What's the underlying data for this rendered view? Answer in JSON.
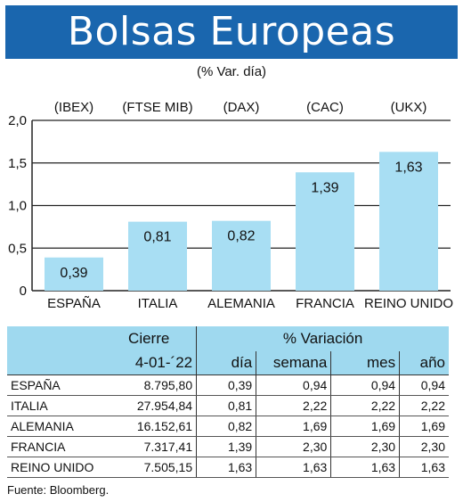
{
  "header": {
    "title": "Bolsas Europeas",
    "subtitle": "(% Var. día)"
  },
  "chart_data": {
    "type": "bar",
    "title": "Bolsas Europeas",
    "subtitle": "(% Var. día)",
    "categories": [
      "ESPAÑA",
      "ITALIA",
      "ALEMANIA",
      "FRANCIA",
      "REINO UNIDO"
    ],
    "indices": [
      "(IBEX)",
      "(FTSE MIB)",
      "(DAX)",
      "(CAC)",
      "(UKX)"
    ],
    "values": [
      0.39,
      0.81,
      0.82,
      1.39,
      1.63
    ],
    "value_labels": [
      "0,39",
      "0,81",
      "0,82",
      "1,39",
      "1,63"
    ],
    "yticks": [
      "0",
      "0,5",
      "1,0",
      "1,5",
      "2,0"
    ],
    "ytick_values": [
      0,
      0.5,
      1.0,
      1.5,
      2.0
    ],
    "ylim": [
      0,
      2.0
    ],
    "grid": true,
    "bar_color": "#a8def3"
  },
  "table": {
    "group_headers": [
      "Cierre",
      "% Variación"
    ],
    "columns": [
      "4-01-´22",
      "día",
      "semana",
      "mes",
      "año"
    ],
    "rows": [
      {
        "name": "ESPAÑA",
        "cierre": "8.795,80",
        "dia": "0,39",
        "semana": "0,94",
        "mes": "0,94",
        "anio": "0,94"
      },
      {
        "name": "ITALIA",
        "cierre": "27.954,84",
        "dia": "0,81",
        "semana": "2,22",
        "mes": "2,22",
        "anio": "2,22"
      },
      {
        "name": "ALEMANIA",
        "cierre": "16.152,61",
        "dia": "0,82",
        "semana": "1,69",
        "mes": "1,69",
        "anio": "1,69"
      },
      {
        "name": "FRANCIA",
        "cierre": "7.317,41",
        "dia": "1,39",
        "semana": "2,30",
        "mes": "2,30",
        "anio": "2,30"
      },
      {
        "name": "REINO UNIDO",
        "cierre": "7.505,15",
        "dia": "1,63",
        "semana": "1,63",
        "mes": "1,63",
        "anio": "1,63"
      }
    ],
    "header_color": "#9fd9ef"
  },
  "source": "Fuente: Bloomberg."
}
